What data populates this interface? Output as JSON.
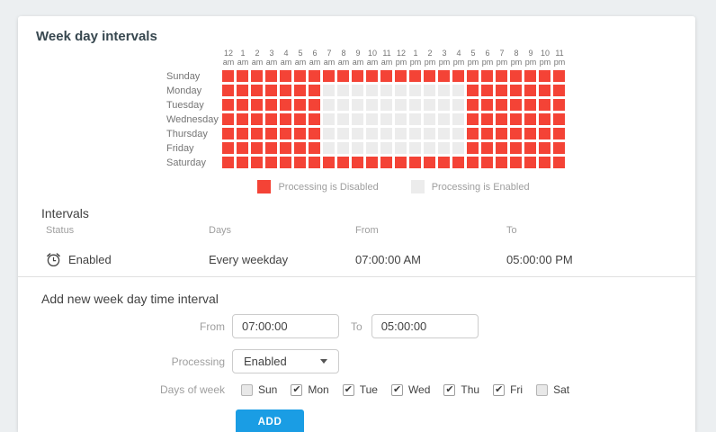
{
  "page": {
    "title": "Week day intervals"
  },
  "colors": {
    "disabled": "#f44336",
    "enabled": "#ececec",
    "add_button": "#1a9de4"
  },
  "heatmap": {
    "hours": [
      "12 am",
      "1 am",
      "2 am",
      "3 am",
      "4 am",
      "5 am",
      "6 am",
      "7 am",
      "8 am",
      "9 am",
      "10 am",
      "11 am",
      "12 pm",
      "1 pm",
      "2 pm",
      "3 pm",
      "4 pm",
      "5 pm",
      "6 pm",
      "7 pm",
      "8 pm",
      "9 pm",
      "10 pm",
      "11 pm"
    ],
    "days": [
      {
        "label": "Sunday",
        "pattern": "111111111111111111111111"
      },
      {
        "label": "Monday",
        "pattern": "111111100000000001111111"
      },
      {
        "label": "Tuesday",
        "pattern": "111111100000000001111111"
      },
      {
        "label": "Wednesday",
        "pattern": "111111100000000001111111"
      },
      {
        "label": "Thursday",
        "pattern": "111111100000000001111111"
      },
      {
        "label": "Friday",
        "pattern": "111111100000000001111111"
      },
      {
        "label": "Saturday",
        "pattern": "111111111111111111111111"
      }
    ]
  },
  "legend": [
    {
      "icon": "disabled-swatch",
      "color": "#f44336",
      "label": "Processing is Disabled"
    },
    {
      "icon": "enabled-swatch",
      "color": "#ececec",
      "label": "Processing is Enabled"
    }
  ],
  "intervals": {
    "title": "Intervals",
    "columns": [
      "Status",
      "Days",
      "From",
      "To"
    ],
    "rows": [
      {
        "icon": "alarm-clock-icon",
        "status": "Enabled",
        "days": "Every weekday",
        "from": "07:00:00 AM",
        "to": "05:00:00 PM"
      }
    ]
  },
  "form": {
    "title": "Add new week day time interval",
    "from_label": "From",
    "from_value": "07:00:00",
    "to_label": "To",
    "to_value": "05:00:00",
    "processing_label": "Processing",
    "processing_value": "Enabled",
    "days_label": "Days of week",
    "days": [
      {
        "label": "Sun",
        "checked": false
      },
      {
        "label": "Mon",
        "checked": true
      },
      {
        "label": "Tue",
        "checked": true
      },
      {
        "label": "Wed",
        "checked": true
      },
      {
        "label": "Thu",
        "checked": true
      },
      {
        "label": "Fri",
        "checked": true
      },
      {
        "label": "Sat",
        "checked": false
      }
    ],
    "add_label": "ADD"
  }
}
